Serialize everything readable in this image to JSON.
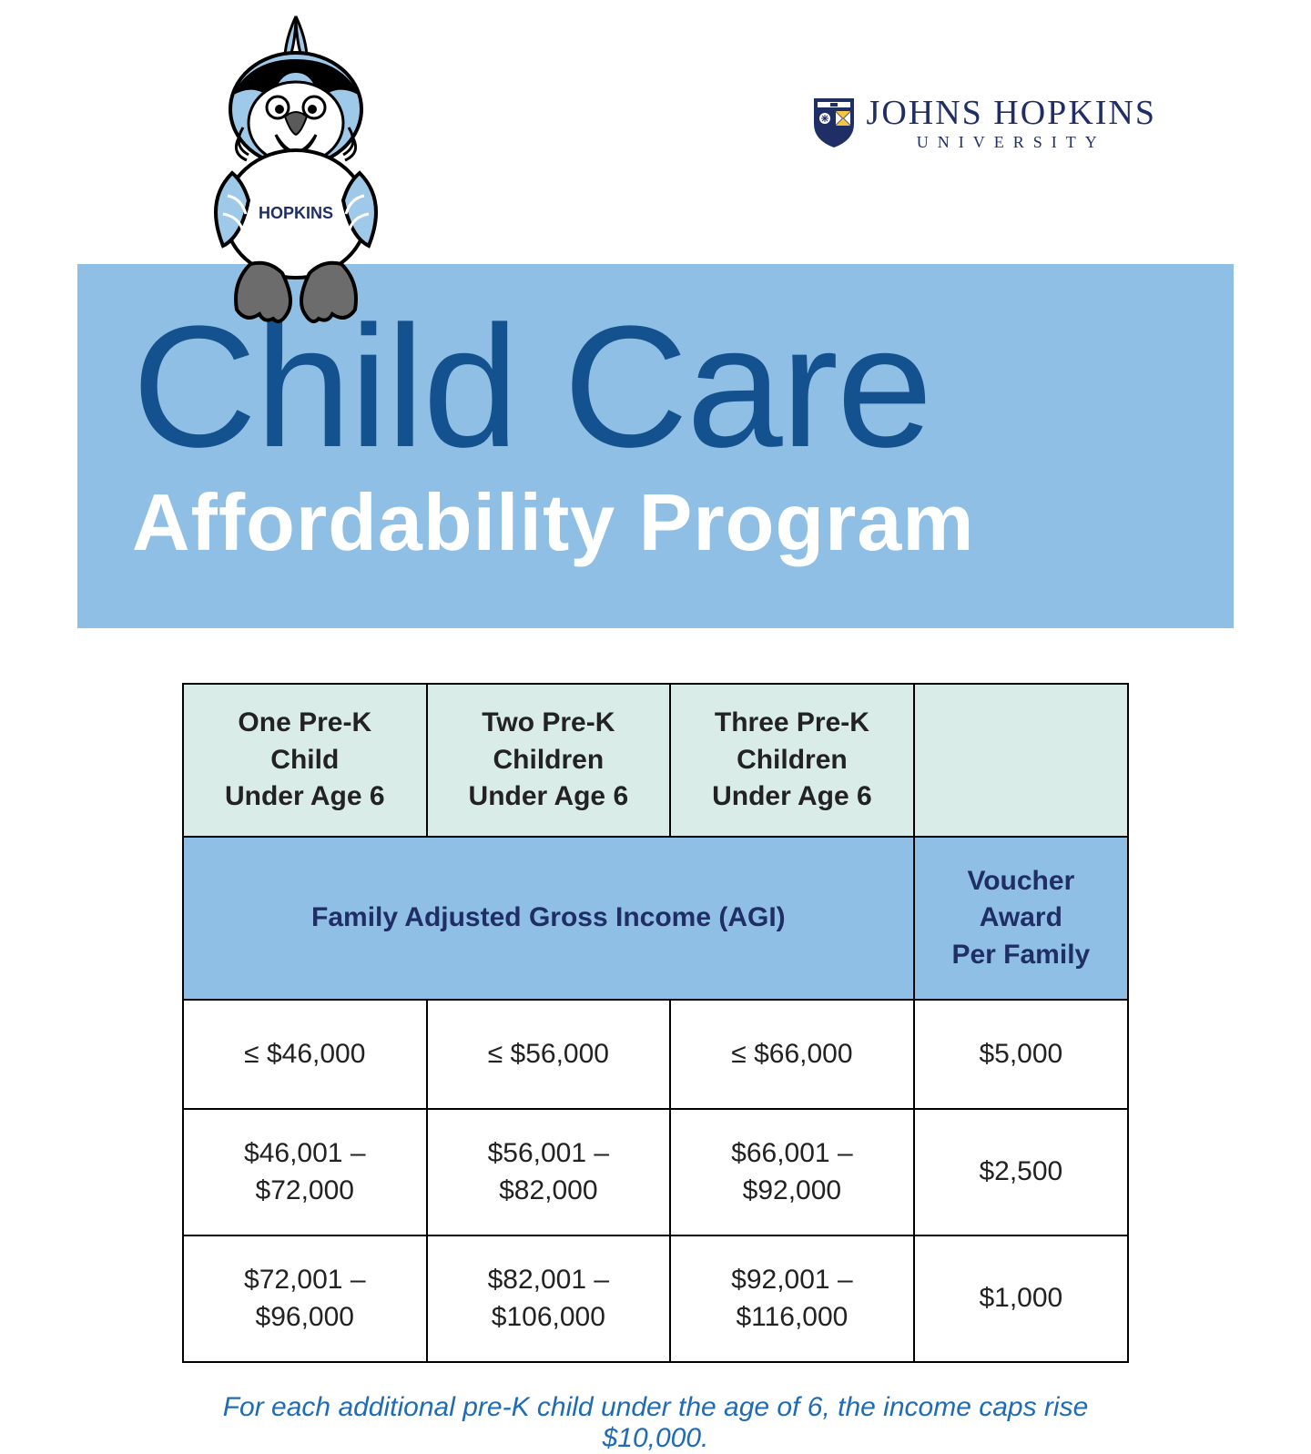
{
  "logo": {
    "name": "JOHNS HOPKINS",
    "sub": "UNIVERSITY",
    "shield_bg": "#1f2f66",
    "shield_accent": "#ffffff"
  },
  "mascot": {
    "label": "HOPKINS",
    "body_color": "#9fc9e8",
    "outline": "#000000",
    "feet": "#6c6c6c",
    "beak": "#5a5a5a",
    "mouth": "#d33"
  },
  "banner": {
    "bg": "#8fbfe4",
    "line1": "Child Care",
    "line1_color": "#14518f",
    "line2": "Affordability Program",
    "line2_color": "#ffffff"
  },
  "table": {
    "header_bg": "#d9ece8",
    "subheader_bg": "#8fbfe4",
    "subheader_text_color": "#1f2f66",
    "border_color": "#000000",
    "columns": [
      "One Pre-K\nChild\nUnder Age 6",
      "Two Pre-K\nChildren\nUnder Age 6",
      "Three Pre-K\nChildren\nUnder Age 6",
      ""
    ],
    "subheader_left": "Family Adjusted Gross Income (AGI)",
    "subheader_right": "Voucher\nAward\nPer Family",
    "rows": [
      [
        "≤ $46,000",
        "≤ $56,000",
        "≤ $66,000",
        "$5,000"
      ],
      [
        "$46,001 –\n$72,000",
        "$56,001 –\n$82,000",
        "$66,001 –\n$92,000",
        "$2,500"
      ],
      [
        "$72,001 –\n$96,000",
        "$82,001 –\n$106,000",
        "$92,001 –\n$116,000",
        "$1,000"
      ]
    ]
  },
  "footnote": "For each additional pre-K child under the age of 6, the income caps rise $10,000.",
  "footnote_color": "#1f6bb5"
}
